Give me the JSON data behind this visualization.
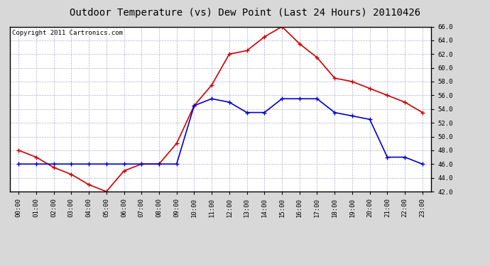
{
  "title": "Outdoor Temperature (vs) Dew Point (Last 24 Hours) 20110426",
  "copyright": "Copyright 2011 Cartronics.com",
  "hours": [
    "00:00",
    "01:00",
    "02:00",
    "03:00",
    "04:00",
    "05:00",
    "06:00",
    "07:00",
    "08:00",
    "09:00",
    "10:00",
    "11:00",
    "12:00",
    "13:00",
    "14:00",
    "15:00",
    "16:00",
    "17:00",
    "18:00",
    "19:00",
    "20:00",
    "21:00",
    "22:00",
    "23:00"
  ],
  "temp": [
    48.0,
    47.0,
    45.5,
    44.5,
    43.0,
    42.0,
    45.0,
    46.0,
    46.0,
    49.0,
    54.5,
    57.5,
    62.0,
    62.5,
    64.5,
    66.0,
    63.5,
    61.5,
    58.5,
    58.0,
    57.0,
    56.0,
    55.0,
    53.5
  ],
  "dew": [
    46.0,
    46.0,
    46.0,
    46.0,
    46.0,
    46.0,
    46.0,
    46.0,
    46.0,
    46.0,
    54.5,
    55.5,
    55.0,
    53.5,
    53.5,
    55.5,
    55.5,
    55.5,
    53.5,
    53.0,
    52.5,
    47.0,
    47.0,
    46.0
  ],
  "ylim": [
    42.0,
    66.0
  ],
  "yticks": [
    42.0,
    44.0,
    46.0,
    48.0,
    50.0,
    52.0,
    54.0,
    56.0,
    58.0,
    60.0,
    62.0,
    64.0,
    66.0
  ],
  "temp_color": "#cc0000",
  "dew_color": "#0000cc",
  "bg_color": "#d8d8d8",
  "plot_bg": "#ffffff",
  "grid_color": "#b0b0cc",
  "title_fontsize": 10,
  "copyright_fontsize": 6.5,
  "tick_fontsize": 6.5,
  "marker": "+",
  "markersize": 4,
  "linewidth": 1.2
}
